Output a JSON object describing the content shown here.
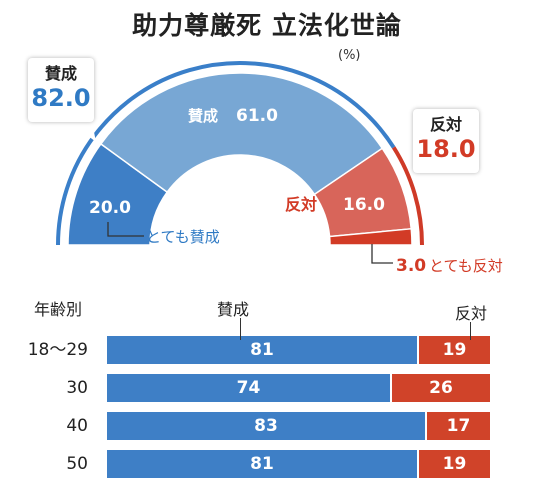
{
  "title": "助力尊厳死 立法化世論",
  "unit": "(%)",
  "summary": {
    "for_label": "賛成",
    "for_value": "82.0",
    "against_label": "反対",
    "against_value": "18.0"
  },
  "colors": {
    "strongly_for": "#3e7fc6",
    "somewhat_for": "#78a7d4",
    "somewhat_against": "#d8655a",
    "strongly_against": "#d23b26",
    "rim_for": "#3a7fc9",
    "rim_against": "#cf3a27"
  },
  "gauge_labels": {
    "strongly_for_value": "20.0",
    "strongly_for_label": "とても賛成",
    "somewhat_for_label": "賛成",
    "somewhat_for_value": "61.0",
    "somewhat_against_label": "反対",
    "somewhat_against_value": "16.0",
    "strongly_against_value": "3.0",
    "strongly_against_label": "とても反対"
  },
  "chart_data": [
    {
      "type": "pie",
      "title": "助力尊厳死 立法化世論",
      "categories": [
        "とても賛成",
        "賛成",
        "反対",
        "とても反対"
      ],
      "values": [
        20.0,
        61.0,
        16.0,
        3.0
      ],
      "totals": {
        "賛成": 82.0,
        "反対": 18.0
      }
    },
    {
      "type": "bar",
      "xlabel": "",
      "ylabel": "年齢別",
      "categories": [
        "18～29",
        "30",
        "40",
        "50"
      ],
      "series": [
        {
          "name": "賛成",
          "values": [
            81,
            74,
            83,
            81
          ]
        },
        {
          "name": "反対",
          "values": [
            19,
            26,
            17,
            19
          ]
        }
      ],
      "labels": [
        "81",
        "74",
        "83",
        "81",
        "19",
        "26",
        "17",
        "19"
      ]
    }
  ],
  "age_section": {
    "header": "年齢別",
    "for_header": "賛成",
    "against_header": "反対",
    "rows": [
      {
        "label": "18～29",
        "for": 81,
        "against": 19,
        "for_text": "81",
        "against_text": "19"
      },
      {
        "label": "30",
        "for": 74,
        "against": 26,
        "for_text": "74",
        "against_text": "26"
      },
      {
        "label": "40",
        "for": 83,
        "against": 17,
        "for_text": "83",
        "against_text": "17"
      },
      {
        "label": "50",
        "for": 81,
        "against": 19,
        "for_text": "81",
        "against_text": "19"
      }
    ]
  }
}
